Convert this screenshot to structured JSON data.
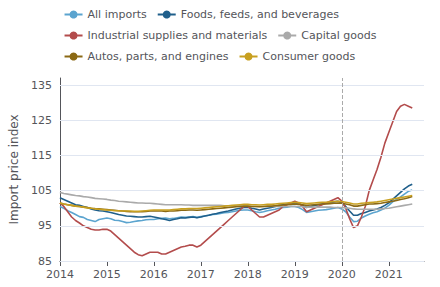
{
  "chart_data": {
    "type": "line",
    "ylabel": "Import price index",
    "xlim": [
      2014.0,
      2021.75
    ],
    "xticks": [
      2014,
      2015,
      2016,
      2017,
      2018,
      2019,
      2020,
      2021
    ],
    "ylim": [
      85,
      137
    ],
    "yticks": [
      85,
      95,
      105,
      115,
      125,
      135
    ],
    "grid": true,
    "legend": "top",
    "vlines": [
      {
        "x": 2020.0,
        "color": "#aaaaaa",
        "line_style": "dashed"
      }
    ],
    "x": [
      2014.0,
      2014.0833333333,
      2014.1666666667,
      2014.25,
      2014.3333333333,
      2014.4166666667,
      2014.5,
      2014.5833333333,
      2014.6666666667,
      2014.75,
      2014.8333333333,
      2014.9166666667,
      2015.0,
      2015.0833333333,
      2015.1666666667,
      2015.25,
      2015.3333333333,
      2015.4166666667,
      2015.5,
      2015.5833333333,
      2015.6666666667,
      2015.75,
      2015.8333333333,
      2015.9166666667,
      2016.0,
      2016.0833333333,
      2016.1666666667,
      2016.25,
      2016.3333333333,
      2016.4166666667,
      2016.5,
      2016.5833333333,
      2016.6666666667,
      2016.75,
      2016.8333333333,
      2016.9166666667,
      2017.0,
      2017.0833333333,
      2017.1666666667,
      2017.25,
      2017.3333333333,
      2017.4166666667,
      2017.5,
      2017.5833333333,
      2017.6666666667,
      2017.75,
      2017.8333333333,
      2017.9166666667,
      2018.0,
      2018.0833333333,
      2018.1666666667,
      2018.25,
      2018.3333333333,
      2018.4166666667,
      2018.5,
      2018.5833333333,
      2018.6666666667,
      2018.75,
      2018.8333333333,
      2018.9166666667,
      2019.0,
      2019.0833333333,
      2019.1666666667,
      2019.25,
      2019.3333333333,
      2019.4166666667,
      2019.5,
      2019.5833333333,
      2019.6666666667,
      2019.75,
      2019.8333333333,
      2019.9166666667,
      2020.0,
      2020.0833333333,
      2020.1666666667,
      2020.25,
      2020.3333333333,
      2020.4166666667,
      2020.5,
      2020.5833333333,
      2020.6666666667,
      2020.75,
      2020.8333333333,
      2020.9166666667,
      2021.0,
      2021.0833333333,
      2021.1666666667,
      2021.25,
      2021.3333333333,
      2021.4166666667,
      2021.5
    ],
    "series": [
      {
        "name": "All imports",
        "color": "#5BA4CF",
        "values": [
          100.5,
          100.0,
          99.3,
          98.8,
          98.2,
          97.6,
          97.4,
          96.8,
          96.5,
          96.2,
          96.8,
          97.0,
          97.2,
          97.0,
          96.6,
          96.5,
          96.2,
          95.9,
          96.0,
          96.2,
          96.4,
          96.5,
          96.7,
          96.8,
          96.8,
          97.0,
          97.1,
          97.2,
          97.0,
          97.1,
          97.3,
          97.5,
          97.4,
          97.5,
          97.6,
          97.4,
          97.6,
          97.8,
          98.0,
          98.2,
          98.3,
          98.5,
          98.7,
          98.8,
          99.0,
          99.2,
          99.4,
          99.5,
          99.5,
          99.3,
          99.0,
          98.8,
          99.0,
          99.3,
          99.5,
          99.7,
          100.0,
          100.2,
          100.3,
          100.5,
          100.5,
          100.2,
          99.6,
          98.8,
          99.0,
          99.2,
          99.4,
          99.5,
          99.6,
          99.8,
          100.0,
          100.2,
          99.8,
          99.0,
          97.5,
          96.2,
          96.3,
          97.2,
          97.8,
          98.3,
          98.7,
          99.0,
          99.5,
          100.0,
          100.8,
          101.8,
          102.5,
          103.2,
          104.0,
          104.8,
          105.2
        ]
      },
      {
        "name": "Foods, feeds, and beverages",
        "color": "#1F5F8B",
        "values": [
          103.0,
          102.5,
          102.0,
          101.5,
          101.0,
          100.8,
          100.5,
          100.2,
          99.8,
          99.5,
          99.3,
          99.2,
          99.0,
          98.8,
          98.5,
          98.2,
          98.0,
          97.8,
          97.7,
          97.6,
          97.5,
          97.5,
          97.6,
          97.7,
          97.5,
          97.3,
          97.0,
          96.8,
          96.5,
          96.8,
          97.0,
          97.3,
          97.2,
          97.4,
          97.5,
          97.3,
          97.5,
          97.8,
          98.0,
          98.3,
          98.5,
          98.8,
          99.0,
          99.2,
          99.5,
          99.8,
          100.0,
          100.2,
          100.3,
          100.0,
          99.8,
          99.5,
          99.8,
          100.0,
          100.2,
          100.5,
          100.8,
          101.0,
          101.2,
          101.3,
          101.5,
          101.3,
          100.8,
          100.2,
          100.5,
          100.8,
          101.0,
          101.2,
          101.4,
          101.6,
          101.8,
          102.0,
          101.5,
          100.5,
          99.2,
          98.0,
          98.0,
          98.5,
          98.8,
          99.2,
          99.5,
          99.8,
          100.2,
          100.8,
          101.5,
          102.5,
          103.5,
          104.5,
          105.5,
          106.3,
          106.8
        ]
      },
      {
        "name": "Industrial supplies and materials",
        "color": "#B34C4C",
        "values": [
          101.5,
          100.5,
          99.0,
          97.5,
          96.5,
          95.8,
          95.0,
          94.5,
          94.0,
          93.8,
          93.8,
          94.0,
          94.0,
          93.5,
          92.5,
          91.5,
          90.5,
          89.5,
          88.5,
          87.5,
          86.8,
          86.5,
          87.0,
          87.5,
          87.5,
          87.5,
          87.0,
          87.0,
          87.5,
          88.0,
          88.5,
          89.0,
          89.2,
          89.5,
          89.5,
          89.0,
          89.5,
          90.5,
          91.5,
          92.5,
          93.5,
          94.5,
          95.5,
          96.5,
          97.5,
          98.5,
          99.5,
          100.5,
          100.5,
          99.5,
          98.5,
          97.5,
          97.5,
          98.0,
          98.5,
          99.0,
          99.5,
          100.5,
          101.0,
          101.5,
          102.0,
          101.5,
          100.5,
          99.0,
          99.5,
          100.0,
          100.5,
          101.0,
          101.5,
          102.0,
          102.5,
          103.0,
          102.0,
          100.0,
          97.0,
          94.5,
          95.0,
          97.5,
          100.5,
          105.0,
          108.0,
          111.0,
          114.5,
          118.5,
          121.5,
          124.5,
          127.5,
          129.0,
          129.5,
          129.0,
          128.5
        ]
      },
      {
        "name": "Capital goods",
        "color": "#AAAAAA",
        "values": [
          104.5,
          104.2,
          104.0,
          103.8,
          103.6,
          103.5,
          103.3,
          103.2,
          103.0,
          102.8,
          102.7,
          102.6,
          102.5,
          102.3,
          102.2,
          102.0,
          101.9,
          101.8,
          101.7,
          101.6,
          101.5,
          101.5,
          101.4,
          101.4,
          101.3,
          101.2,
          101.1,
          101.0,
          101.0,
          101.0,
          101.0,
          101.0,
          100.9,
          100.9,
          100.8,
          100.8,
          100.8,
          100.8,
          100.8,
          100.8,
          100.8,
          100.8,
          100.7,
          100.7,
          100.7,
          100.7,
          100.7,
          100.6,
          100.6,
          100.5,
          100.5,
          100.5,
          100.5,
          100.5,
          100.5,
          100.5,
          100.5,
          100.5,
          100.5,
          100.5,
          100.5,
          100.5,
          100.4,
          100.3,
          100.3,
          100.3,
          100.3,
          100.3,
          100.3,
          100.3,
          100.2,
          100.2,
          100.2,
          100.1,
          100.0,
          99.8,
          99.7,
          99.7,
          99.7,
          99.7,
          99.7,
          99.7,
          99.8,
          99.9,
          100.0,
          100.2,
          100.4,
          100.6,
          100.8,
          101.0,
          101.2
        ]
      },
      {
        "name": "Autos, parts, and engines",
        "color": "#8B6914",
        "values": [
          101.5,
          101.2,
          101.0,
          100.8,
          100.6,
          100.5,
          100.3,
          100.2,
          100.0,
          99.9,
          99.8,
          99.7,
          99.6,
          99.5,
          99.4,
          99.3,
          99.2,
          99.1,
          99.0,
          99.0,
          99.0,
          99.0,
          99.1,
          99.2,
          99.2,
          99.2,
          99.2,
          99.1,
          99.2,
          99.2,
          99.3,
          99.4,
          99.4,
          99.5,
          99.5,
          99.4,
          99.5,
          99.6,
          99.7,
          99.8,
          99.9,
          100.0,
          100.1,
          100.2,
          100.3,
          100.4,
          100.5,
          100.6,
          100.6,
          100.5,
          100.5,
          100.4,
          100.5,
          100.6,
          100.6,
          100.7,
          100.8,
          100.9,
          101.0,
          101.1,
          101.2,
          101.1,
          101.0,
          100.8,
          100.9,
          101.0,
          101.1,
          101.2,
          101.2,
          101.3,
          101.4,
          101.5,
          101.4,
          101.2,
          101.0,
          100.6,
          100.6,
          100.8,
          101.0,
          101.2,
          101.2,
          101.3,
          101.4,
          101.6,
          101.8,
          102.0,
          102.2,
          102.5,
          102.7,
          103.0,
          103.3
        ]
      },
      {
        "name": "Consumer goods",
        "color": "#C8A020",
        "values": [
          101.5,
          101.2,
          101.0,
          100.8,
          100.6,
          100.5,
          100.3,
          100.1,
          100.0,
          99.8,
          99.7,
          99.6,
          99.5,
          99.4,
          99.3,
          99.3,
          99.2,
          99.2,
          99.2,
          99.1,
          99.1,
          99.2,
          99.3,
          99.4,
          99.5,
          99.5,
          99.5,
          99.5,
          99.5,
          99.6,
          99.7,
          99.8,
          99.8,
          99.9,
          99.9,
          99.9,
          100.0,
          100.1,
          100.2,
          100.3,
          100.4,
          100.5,
          100.6,
          100.7,
          100.8,
          100.9,
          101.0,
          101.1,
          101.1,
          101.0,
          101.0,
          100.9,
          101.0,
          101.1,
          101.1,
          101.2,
          101.3,
          101.4,
          101.5,
          101.6,
          101.7,
          101.6,
          101.5,
          101.3,
          101.4,
          101.5,
          101.6,
          101.7,
          101.7,
          101.8,
          101.9,
          102.0,
          101.9,
          101.7,
          101.5,
          101.2,
          101.2,
          101.4,
          101.5,
          101.6,
          101.7,
          101.8,
          102.0,
          102.2,
          102.4,
          102.6,
          102.8,
          103.0,
          103.2,
          103.4,
          103.6
        ]
      }
    ]
  }
}
